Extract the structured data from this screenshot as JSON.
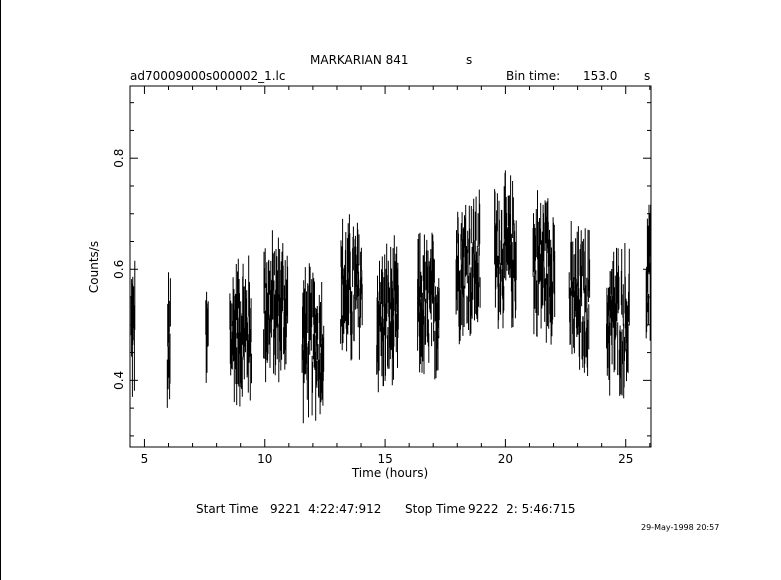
{
  "header": {
    "object": "MARKARIAN 841",
    "object_unit": "s",
    "filename": "ad70009000s000002_1.lc",
    "bin_label": "Bin time:",
    "bin_value": "153.0",
    "bin_unit": "s"
  },
  "footer": {
    "start_label": "Start Time",
    "start_value": "9221  4:22:47:912",
    "stop_label": "Stop Time",
    "stop_value": "9222  2: 5:46:715",
    "datestamp": "29-May-1998 20:57"
  },
  "chart_data": {
    "type": "line",
    "xlabel": "Time (hours)",
    "ylabel": "Counts/s",
    "xlim": [
      4.4,
      26.05
    ],
    "ylim": [
      0.28,
      0.93
    ],
    "xticks": [
      5,
      10,
      15,
      20,
      25
    ],
    "yticks": [
      0.4,
      0.6,
      0.8
    ],
    "segments": [
      {
        "x0": 4.45,
        "x1": 4.6,
        "mean": 0.49
      },
      {
        "x0": 5.95,
        "x1": 6.08,
        "mean": 0.46
      },
      {
        "x0": 7.55,
        "x1": 7.65,
        "mean": 0.47
      },
      {
        "x0": 8.55,
        "x1": 9.45,
        "mean": 0.49
      },
      {
        "x0": 9.95,
        "x1": 10.95,
        "mean": 0.53
      },
      {
        "x0": 11.55,
        "x1": 12.45,
        "mean": 0.47
      },
      {
        "x0": 13.15,
        "x1": 14.05,
        "mean": 0.56
      },
      {
        "x0": 14.65,
        "x1": 15.55,
        "mean": 0.51
      },
      {
        "x0": 16.35,
        "x1": 17.25,
        "mean": 0.53
      },
      {
        "x0": 17.95,
        "x1": 18.95,
        "mean": 0.61
      },
      {
        "x0": 19.55,
        "x1": 20.45,
        "mean": 0.63
      },
      {
        "x0": 21.15,
        "x1": 22.05,
        "mean": 0.61
      },
      {
        "x0": 22.65,
        "x1": 23.5,
        "mean": 0.54
      },
      {
        "x0": 24.2,
        "x1": 25.15,
        "mean": 0.51
      },
      {
        "x0": 25.85,
        "x1": 26.05,
        "mean": 0.58
      }
    ],
    "jitter": 0.085
  }
}
